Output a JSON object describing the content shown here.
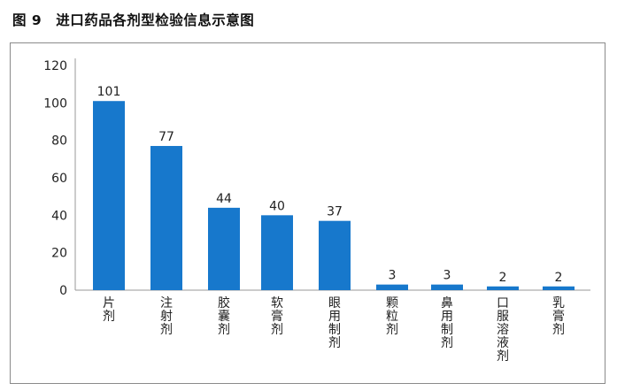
{
  "figure": {
    "number": "图 9",
    "title": "进口药品各剂型检验信息示意图"
  },
  "chart_data": {
    "type": "bar",
    "categories": [
      "片剂",
      "注射剂",
      "胶囊剂",
      "软膏剂",
      "眼用制剂",
      "颗粒剂",
      "鼻用制剂",
      "口服溶液剂",
      "乳膏剂"
    ],
    "values": [
      101,
      77,
      44,
      40,
      37,
      3,
      3,
      2,
      2
    ],
    "ylim": [
      0,
      120
    ],
    "yticks": [
      0,
      20,
      40,
      60,
      80,
      100,
      120
    ],
    "grid": false,
    "legend": "none",
    "bar_color": "#1778cc"
  }
}
